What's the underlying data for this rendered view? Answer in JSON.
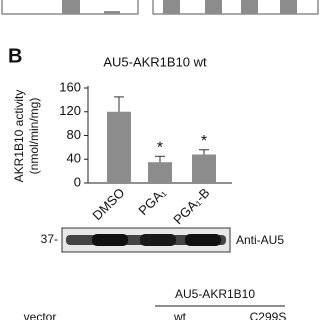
{
  "panel_label": "B",
  "chart_data": {
    "type": "bar",
    "title": "AU5-AKR1B10 wt",
    "y_label": [
      "AKR1B10 activity",
      "(nmol/min/mg)"
    ],
    "categories": [
      "DMSO",
      "PGA₁",
      "PGA₁-B"
    ],
    "values": [
      120,
      35,
      48
    ],
    "errors": [
      25,
      10,
      8
    ],
    "annotations": [
      "*",
      "*"
    ],
    "color": "#8c8c8c",
    "ylim": [
      0,
      160
    ],
    "yticks": [
      0,
      40,
      80,
      120,
      160
    ]
  },
  "blot": {
    "marker": "37-",
    "antibody": "Anti-AU5"
  },
  "bottom": {
    "group": "AU5-AKR1B10",
    "labels": [
      "vector",
      "wt",
      "C299S"
    ]
  }
}
